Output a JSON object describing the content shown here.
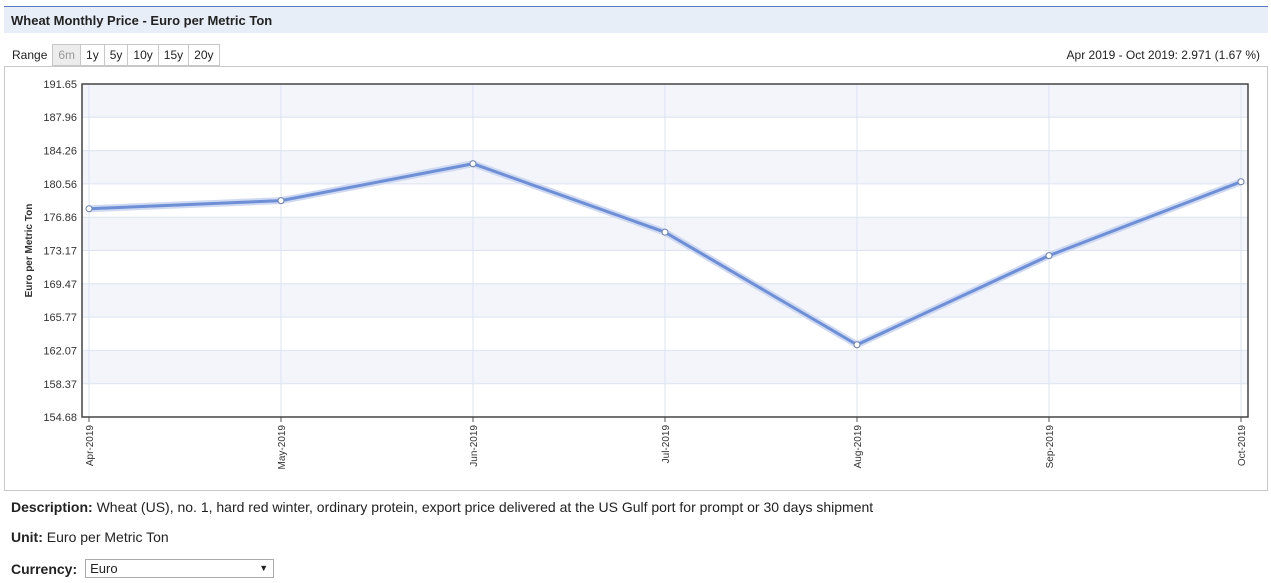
{
  "header": {
    "title": "Wheat Monthly Price - Euro per Metric Ton"
  },
  "range": {
    "label": "Range",
    "buttons": [
      "6m",
      "1y",
      "5y",
      "10y",
      "15y",
      "20y"
    ],
    "active": "6m"
  },
  "summary": "Apr 2019 - Oct 2019: 2.971 (1.67 %)",
  "chart_data": {
    "type": "line",
    "categories": [
      "Apr-2019",
      "May-2019",
      "Jun-2019",
      "Jul-2019",
      "Aug-2019",
      "Sep-2019",
      "Oct-2019"
    ],
    "series": [
      {
        "values": [
          177.8,
          178.7,
          182.8,
          175.2,
          162.7,
          172.6,
          180.8
        ],
        "color": "#6e8fd6"
      }
    ],
    "ylabel": "Euro per Metric Ton",
    "ylim": [
      154.68,
      191.65
    ],
    "yticks": [
      "154.68",
      "158.37",
      "162.07",
      "165.77",
      "169.47",
      "173.17",
      "176.86",
      "180.56",
      "184.26",
      "187.96",
      "191.65"
    ],
    "grid": true
  },
  "description": {
    "label": "Description:",
    "text": "Wheat (US), no. 1, hard red winter, ordinary protein, export price delivered at the US Gulf port for prompt or 30 days shipment"
  },
  "unit": {
    "label": "Unit:",
    "text": "Euro per Metric Ton"
  },
  "currency": {
    "label": "Currency:",
    "selected": "Euro"
  }
}
